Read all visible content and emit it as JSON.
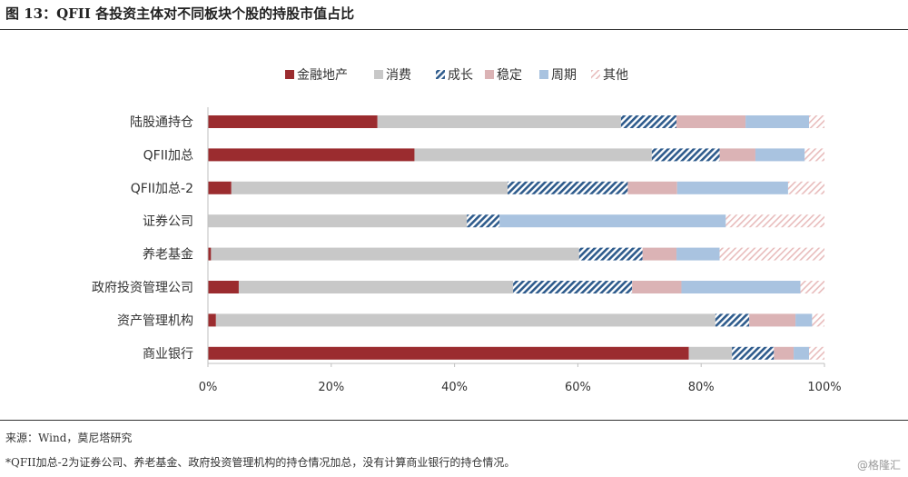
{
  "figure_title": "图 13：QFII 各投资主体对不同板块个股的持股市值占比",
  "source": "来源：Wind，莫尼塔研究",
  "note": "*QFII加总-2为证券公司、养老基金、政府投资管理机构的持仓情况加总，没有计算商业银行的持仓情况。",
  "watermark": "@格隆汇",
  "chart_data": {
    "type": "bar",
    "orientation": "horizontal",
    "stacked": "percent",
    "title": "",
    "xlabel": "",
    "ylabel": "",
    "xlim": [
      0,
      100
    ],
    "x_ticks": [
      "0%",
      "20%",
      "40%",
      "60%",
      "80%",
      "100%"
    ],
    "legend_position": "top",
    "categories": [
      "陆股通持仓",
      "QFII加总",
      "QFII加总-2",
      "证券公司",
      "养老基金",
      "政府投资管理公司",
      "资产管理机构",
      "商业银行"
    ],
    "series": [
      {
        "name": "金融地产",
        "color": "#9b2c2f",
        "pattern": "solid",
        "values": [
          27.5,
          33.5,
          3.8,
          0,
          0.5,
          5.0,
          1.3,
          78.0
        ]
      },
      {
        "name": "消费",
        "color": "#c8c8c8",
        "pattern": "solid",
        "values": [
          39.5,
          38.5,
          44.8,
          42.0,
          59.7,
          44.5,
          81.0,
          7.0
        ]
      },
      {
        "name": "成长",
        "color": "#2e5b8c",
        "pattern": "hatch",
        "values": [
          9.0,
          11.0,
          19.5,
          5.3,
          10.3,
          19.3,
          5.5,
          6.8
        ]
      },
      {
        "name": "稳定",
        "color": "#dbb3b5",
        "pattern": "solid",
        "values": [
          11.2,
          5.8,
          8.0,
          0,
          5.5,
          8.0,
          7.5,
          3.2
        ]
      },
      {
        "name": "周期",
        "color": "#a9c3e0",
        "pattern": "solid",
        "values": [
          10.3,
          8.0,
          18.0,
          36.7,
          7.0,
          19.3,
          2.7,
          2.5
        ]
      },
      {
        "name": "其他",
        "color": "#e8bcbc",
        "pattern": "light-hatch",
        "values": [
          2.5,
          3.2,
          5.9,
          16.0,
          17.0,
          3.9,
          2.0,
          2.5
        ]
      }
    ]
  }
}
